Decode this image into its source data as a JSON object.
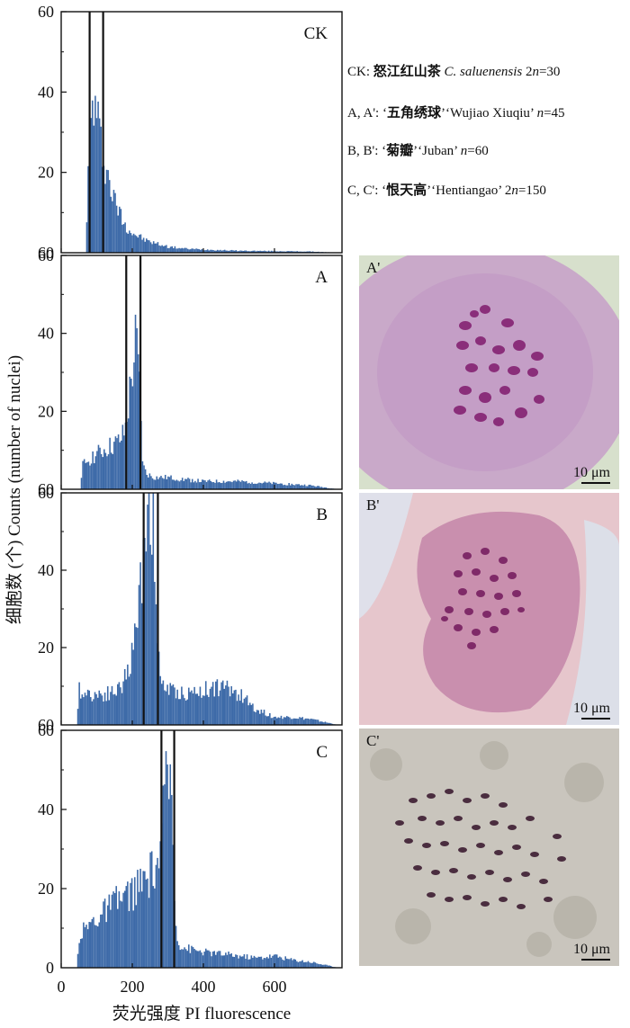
{
  "chart_data": {
    "type": "bar",
    "ylabel": "细胞数 (个) Counts (number of nuclei)",
    "xlabel": "荧光强度 PI fluorescence",
    "xlim": [
      0,
      790
    ],
    "ylim": [
      0,
      60
    ],
    "x_ticks": [
      "0",
      "200",
      "400",
      "600"
    ],
    "y_ticks": [
      "20",
      "40",
      "60"
    ],
    "panels": [
      {
        "label": "CK",
        "bottom_tick": "60",
        "gate": [
          80,
          118
        ],
        "series": {
          "x": [
            70,
            80,
            90,
            100,
            110,
            120,
            130,
            140,
            150,
            160,
            170,
            180,
            190,
            200,
            220,
            240,
            260,
            280,
            300,
            350,
            400,
            500,
            600,
            700,
            780
          ],
          "values": [
            5,
            28,
            38,
            34,
            28,
            24,
            20,
            16,
            13,
            11,
            9,
            7,
            6,
            5,
            4,
            3,
            2.5,
            2,
            1.5,
            1,
            0.8,
            0.5,
            0.4,
            0.3,
            0
          ]
        }
      },
      {
        "label": "A",
        "bottom_tick": "60",
        "gate": [
          183,
          223
        ],
        "series": {
          "x": [
            55,
            60,
            80,
            100,
            120,
            140,
            160,
            170,
            180,
            190,
            200,
            210,
            220,
            230,
            240,
            260,
            300,
            400,
            500,
            600,
            700,
            780
          ],
          "values": [
            0,
            6,
            8,
            9,
            10,
            11,
            12,
            13,
            15,
            22,
            30,
            38,
            28,
            6,
            4,
            3,
            3,
            2,
            2,
            1.5,
            1,
            0
          ]
        }
      },
      {
        "label": "B",
        "bottom_tick": "60",
        "gate": [
          232,
          272
        ],
        "series": {
          "x": [
            45,
            50,
            80,
            120,
            160,
            180,
            200,
            210,
            220,
            230,
            240,
            250,
            260,
            270,
            280,
            300,
            350,
            400,
            450,
            500,
            550,
            600,
            650,
            700,
            780
          ],
          "values": [
            0,
            9,
            8,
            8,
            9,
            12,
            18,
            25,
            32,
            45,
            55,
            60,
            55,
            20,
            12,
            9,
            8,
            9,
            10,
            8,
            4,
            2,
            2,
            1.5,
            0
          ]
        }
      },
      {
        "label": "C",
        "bottom_tick": "0",
        "gate": [
          282,
          318
        ],
        "series": {
          "x": [
            45,
            50,
            80,
            120,
            160,
            200,
            240,
            270,
            280,
            290,
            300,
            310,
            320,
            330,
            350,
            400,
            450,
            500,
            550,
            600,
            650,
            700,
            780
          ],
          "values": [
            0,
            8,
            11,
            14,
            17,
            19,
            22,
            26,
            30,
            40,
            50,
            46,
            15,
            6,
            5,
            4,
            3.5,
            3,
            2.5,
            3,
            2,
            1.5,
            0
          ]
        }
      }
    ]
  },
  "legend": [
    {
      "prefix": "CK: ",
      "bold": "怒江红山茶",
      "mid": "  ",
      "italic": "C. saluenensis",
      "suffix": " 2",
      "ital2": "n",
      "tail": "=30"
    },
    {
      "prefix": "A, A': ‘",
      "bold": "五角绣球",
      "mid": "’‘Wujiao Xiuqiu’ ",
      "italic": "",
      "suffix": "",
      "ital2": "n",
      "tail": "=45"
    },
    {
      "prefix": "B, B': ‘",
      "bold": "菊瓣",
      "mid": "’‘Juban’ ",
      "italic": "",
      "suffix": "",
      "ital2": "n",
      "tail": "=60"
    },
    {
      "prefix": "C, C': ‘",
      "bold": "恨天高",
      "mid": "’‘Hentiangao’ 2",
      "italic": "",
      "suffix": "",
      "ital2": "n",
      "tail": "=150"
    }
  ],
  "photos": [
    {
      "label": "A'",
      "scale": "10 μm"
    },
    {
      "label": "B'",
      "scale": "10 μm"
    },
    {
      "label": "C'",
      "scale": "10 μm"
    }
  ],
  "colors": {
    "bar": "#3d6aa8",
    "gate": "#111111"
  }
}
